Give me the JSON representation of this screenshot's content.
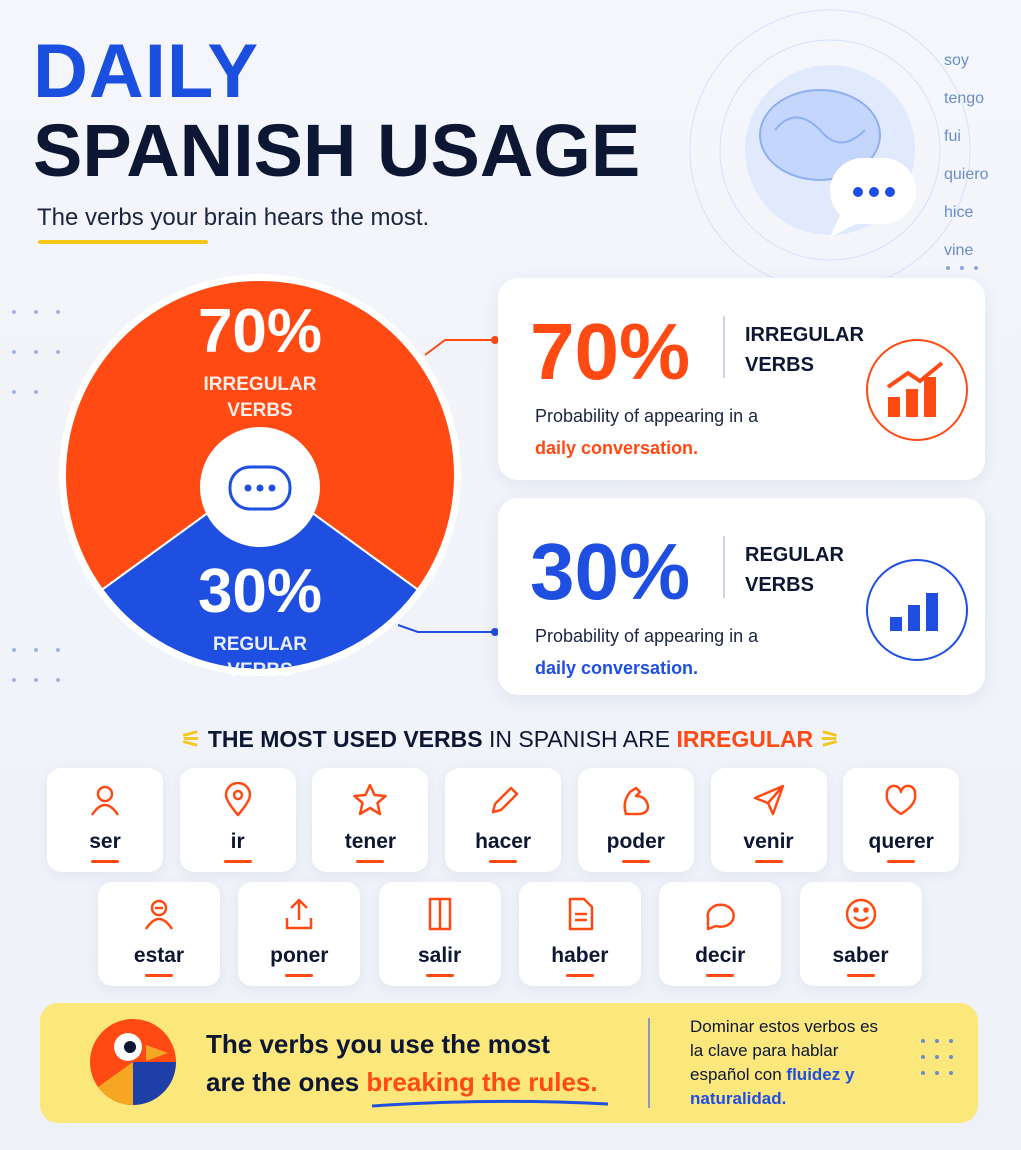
{
  "header": {
    "title_line1": "DAILY",
    "title_line2": "SPANISH USAGE",
    "subtitle": "The verbs your brain hears the most."
  },
  "word_cloud": [
    "soy",
    "tengo",
    "fui",
    "quiero",
    "hice",
    "vine"
  ],
  "chart_data": {
    "type": "pie",
    "categories": [
      "IRREGULAR VERBS",
      "REGULAR VERBS"
    ],
    "values": [
      70,
      30
    ],
    "value_labels": [
      "70%",
      "30%"
    ],
    "colors": [
      "#ff4a14",
      "#1f4fe0"
    ]
  },
  "cards": [
    {
      "description": "Probability of appearing in a",
      "highlight": "daily conversation."
    },
    {
      "description": "Probability of appearing in a",
      "highlight": "daily conversation."
    }
  ],
  "verbs": {
    "heading": {
      "bold": "THE MOST USED VERBS",
      "middle": "IN SPANISH ARE",
      "highlight": "IRREGULAR"
    },
    "items": [
      "ser",
      "ir",
      "tener",
      "hacer",
      "poder",
      "venir",
      "querer",
      "estar",
      "poner",
      "salir",
      "haber",
      "decir",
      "saber"
    ]
  },
  "banner": {
    "line1": "The verbs you use the most",
    "line2": "are the ones",
    "highlight": "breaking the rules.",
    "note": "Dominar estos verbos es la clave para hablar español con",
    "note_highlight": "fluidez y naturalidad."
  }
}
